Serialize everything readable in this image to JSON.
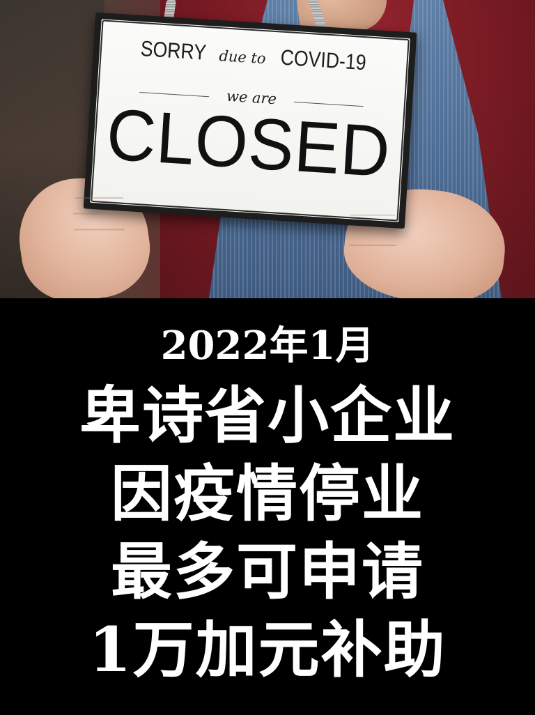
{
  "sign": {
    "sorry": "SORRY",
    "due_to": "due to",
    "covid": "COVID-19",
    "we_are": "we are",
    "closed": "CLOSED"
  },
  "caption": {
    "date": "2022年1月",
    "lines": [
      "卑诗省小企业",
      "因疫情停业",
      "最多可申请",
      "1万加元补助"
    ]
  },
  "colors": {
    "background": "#000000",
    "text": "#ffffff",
    "sign_face": "#f5f5f2",
    "sign_border": "#1d1d1d"
  }
}
